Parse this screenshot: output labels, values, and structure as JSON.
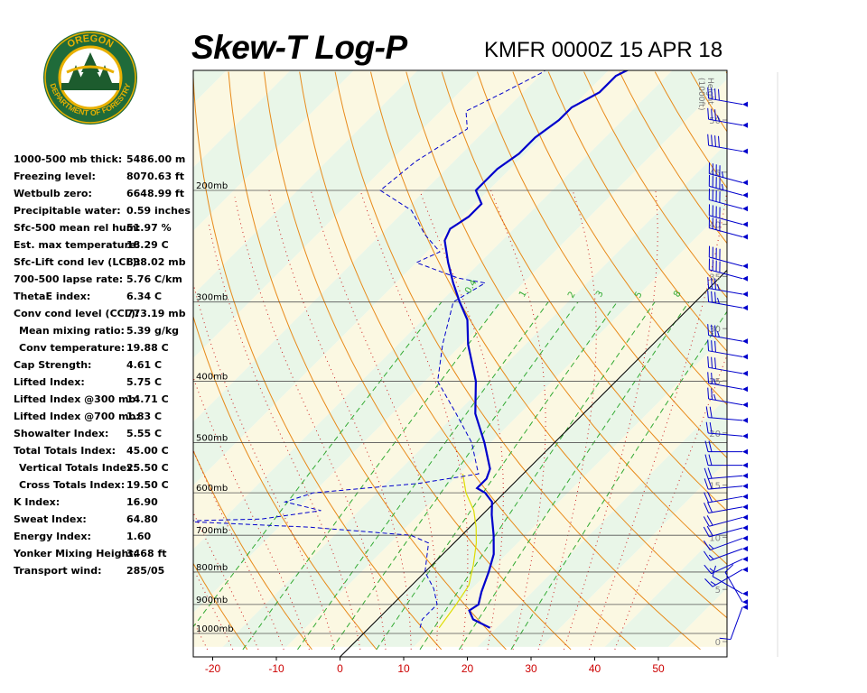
{
  "header": {
    "title": "Skew-T Log-P",
    "station": "KMFR 0000Z 15 APR 18"
  },
  "logo": {
    "top_text": "OREGON",
    "bottom_text": "DEPARTMENT OF FORESTRY",
    "colors": {
      "ring": "#1f6b3a",
      "gold": "#e8b000",
      "tree": "#1d5c2e"
    }
  },
  "stats": [
    {
      "label": "1000-500 mb thick:",
      "value": "5486.00 m",
      "indent": false
    },
    {
      "label": "Freezing level:",
      "value": "8070.63 ft",
      "indent": false
    },
    {
      "label": "Wetbulb zero:",
      "value": "6648.99 ft",
      "indent": false
    },
    {
      "label": "Precipitable water:",
      "value": "0.59 inches",
      "indent": false
    },
    {
      "label": "Sfc-500 mean rel hum:",
      "value": "51.97 %",
      "indent": false
    },
    {
      "label": "Est. max temperature:",
      "value": "18.29 C",
      "indent": false
    },
    {
      "label": "Sfc-Lift cond lev (LCL):",
      "value": "838.02 mb",
      "indent": false
    },
    {
      "label": "700-500 lapse rate:",
      "value": "5.76 C/km",
      "indent": false
    },
    {
      "label": "ThetaE index:",
      "value": "6.34 C",
      "indent": false
    },
    {
      "label": "Conv cond level (CCL):",
      "value": "773.19 mb",
      "indent": false
    },
    {
      "label": "Mean mixing ratio:",
      "value": "5.39 g/kg",
      "indent": true
    },
    {
      "label": "Conv temperature:",
      "value": "19.88 C",
      "indent": true
    },
    {
      "label": "Cap Strength:",
      "value": "4.61 C",
      "indent": false
    },
    {
      "label": "Lifted Index:",
      "value": "5.75 C",
      "indent": false
    },
    {
      "label": "Lifted Index @300 mb:",
      "value": "14.71 C",
      "indent": false
    },
    {
      "label": "Lifted Index @700 mb:",
      "value": "1.83 C",
      "indent": false
    },
    {
      "label": "Showalter Index:",
      "value": "5.55 C",
      "indent": false
    },
    {
      "label": "Total Totals Index:",
      "value": "45.00 C",
      "indent": false
    },
    {
      "label": "Vertical Totals Index:",
      "value": "25.50 C",
      "indent": true
    },
    {
      "label": "Cross Totals Index:",
      "value": "19.50 C",
      "indent": true
    },
    {
      "label": "K Index:",
      "value": "16.90",
      "indent": false
    },
    {
      "label": "Sweat Index:",
      "value": "64.80",
      "indent": false
    },
    {
      "label": "Energy Index:",
      "value": "1.60",
      "indent": false
    },
    {
      "label": "Yonker Mixing Height:",
      "value": "3468 ft",
      "indent": false
    },
    {
      "label": "Transport wind:",
      "value": "285/05",
      "indent": false
    }
  ],
  "chart_data": {
    "type": "line",
    "x_axis": {
      "ticks": [
        -20,
        -10,
        0,
        10,
        20,
        30,
        40,
        50
      ],
      "tick_color": "#cc0000"
    },
    "pressure_levels": [
      {
        "p": 1000,
        "label": "1000mb"
      },
      {
        "p": 900,
        "label": "900mb"
      },
      {
        "p": 800,
        "label": "800mb"
      },
      {
        "p": 700,
        "label": "700mb"
      },
      {
        "p": 600,
        "label": "600mb"
      },
      {
        "p": 500,
        "label": "500mb"
      },
      {
        "p": 400,
        "label": "400mb"
      },
      {
        "p": 300,
        "label": "300mb"
      },
      {
        "p": 200,
        "label": "200mb"
      }
    ],
    "height_axis": {
      "label_line1": "Height",
      "label_line2": "(1000ft)",
      "ticks": [
        0,
        5,
        10,
        15,
        20,
        25,
        30,
        35,
        40,
        45,
        50
      ]
    },
    "mixing_ratio_labels": [
      "0.4",
      "1",
      "2",
      "3",
      "5",
      "8"
    ],
    "temperature_series": {
      "color": "#0000cc",
      "points": [
        {
          "p": 980,
          "t": 19
        },
        {
          "p": 950,
          "t": 15
        },
        {
          "p": 920,
          "t": 13
        },
        {
          "p": 900,
          "t": 13.5
        },
        {
          "p": 860,
          "t": 12
        },
        {
          "p": 800,
          "t": 10
        },
        {
          "p": 750,
          "t": 8
        },
        {
          "p": 700,
          "t": 5
        },
        {
          "p": 650,
          "t": 1.5
        },
        {
          "p": 620,
          "t": -0.5
        },
        {
          "p": 600,
          "t": -3
        },
        {
          "p": 590,
          "t": -5
        },
        {
          "p": 570,
          "t": -5
        },
        {
          "p": 550,
          "t": -6
        },
        {
          "p": 500,
          "t": -11
        },
        {
          "p": 450,
          "t": -17
        },
        {
          "p": 400,
          "t": -22
        },
        {
          "p": 350,
          "t": -29
        },
        {
          "p": 320,
          "t": -33
        },
        {
          "p": 300,
          "t": -37
        },
        {
          "p": 280,
          "t": -41
        },
        {
          "p": 260,
          "t": -45
        },
        {
          "p": 240,
          "t": -49
        },
        {
          "p": 230,
          "t": -50
        },
        {
          "p": 220,
          "t": -49
        },
        {
          "p": 210,
          "t": -49
        },
        {
          "p": 200,
          "t": -52
        },
        {
          "p": 185,
          "t": -52
        },
        {
          "p": 175,
          "t": -51
        },
        {
          "p": 165,
          "t": -51
        },
        {
          "p": 155,
          "t": -50
        },
        {
          "p": 148,
          "t": -50
        },
        {
          "p": 140,
          "t": -48
        },
        {
          "p": 132,
          "t": -48
        },
        {
          "p": 126,
          "t": -46
        },
        {
          "p": 120,
          "t": -44
        }
      ]
    },
    "dewpoint_series": {
      "color": "#0000cc",
      "points": [
        {
          "p": 980,
          "t": 8
        },
        {
          "p": 950,
          "t": 7
        },
        {
          "p": 900,
          "t": 7
        },
        {
          "p": 850,
          "t": 4
        },
        {
          "p": 800,
          "t": 0
        },
        {
          "p": 720,
          "t": -4
        },
        {
          "p": 700,
          "t": -8
        },
        {
          "p": 680,
          "t": -25
        },
        {
          "p": 665,
          "t": -47
        },
        {
          "p": 660,
          "t": -34
        },
        {
          "p": 640,
          "t": -26
        },
        {
          "p": 620,
          "t": -33
        },
        {
          "p": 600,
          "t": -30
        },
        {
          "p": 580,
          "t": -15
        },
        {
          "p": 560,
          "t": -7
        },
        {
          "p": 550,
          "t": -8
        },
        {
          "p": 500,
          "t": -13
        },
        {
          "p": 450,
          "t": -20
        },
        {
          "p": 400,
          "t": -28
        },
        {
          "p": 350,
          "t": -33
        },
        {
          "p": 300,
          "t": -38
        },
        {
          "p": 280,
          "t": -36
        },
        {
          "p": 275,
          "t": -41
        },
        {
          "p": 260,
          "t": -50
        },
        {
          "p": 250,
          "t": -48
        },
        {
          "p": 235,
          "t": -53
        },
        {
          "p": 215,
          "t": -59
        },
        {
          "p": 200,
          "t": -67
        },
        {
          "p": 180,
          "t": -66
        },
        {
          "p": 160,
          "t": -63
        },
        {
          "p": 150,
          "t": -66
        },
        {
          "p": 140,
          "t": -63
        },
        {
          "p": 130,
          "t": -60
        },
        {
          "p": 125,
          "t": -60
        }
      ]
    },
    "parcel_series": {
      "color": "#dddd00",
      "points": [
        {
          "p": 980,
          "t": 11
        },
        {
          "p": 900,
          "t": 10
        },
        {
          "p": 840,
          "t": 9
        },
        {
          "p": 780,
          "t": 6.5
        },
        {
          "p": 720,
          "t": 3.5
        },
        {
          "p": 680,
          "t": 1
        },
        {
          "p": 640,
          "t": -2
        },
        {
          "p": 600,
          "t": -6
        },
        {
          "p": 560,
          "t": -9.5
        }
      ]
    },
    "wind_barbs": {
      "color": "#0000cc",
      "rows": [
        {
          "h": 51.5,
          "dir": 280,
          "spd": 40
        },
        {
          "h": 49.5,
          "dir": 280,
          "spd": 35
        },
        {
          "h": 47.0,
          "dir": 280,
          "spd": 40
        },
        {
          "h": 44.0,
          "dir": 285,
          "spd": 45
        },
        {
          "h": 42.8,
          "dir": 285,
          "spd": 45
        },
        {
          "h": 41.5,
          "dir": 285,
          "spd": 40
        },
        {
          "h": 40.0,
          "dir": 285,
          "spd": 40
        },
        {
          "h": 38.8,
          "dir": 285,
          "spd": 40
        },
        {
          "h": 36.0,
          "dir": 285,
          "spd": 40
        },
        {
          "h": 34.8,
          "dir": 285,
          "spd": 40
        },
        {
          "h": 33.3,
          "dir": 280,
          "spd": 35
        },
        {
          "h": 32.0,
          "dir": 280,
          "spd": 35
        },
        {
          "h": 28.8,
          "dir": 280,
          "spd": 35
        },
        {
          "h": 27.3,
          "dir": 280,
          "spd": 30
        },
        {
          "h": 25.7,
          "dir": 280,
          "spd": 30
        },
        {
          "h": 24.2,
          "dir": 280,
          "spd": 25
        },
        {
          "h": 22.7,
          "dir": 280,
          "spd": 25
        },
        {
          "h": 21.2,
          "dir": 275,
          "spd": 20
        },
        {
          "h": 19.7,
          "dir": 275,
          "spd": 20
        },
        {
          "h": 18.2,
          "dir": 270,
          "spd": 20
        },
        {
          "h": 16.9,
          "dir": 270,
          "spd": 20
        },
        {
          "h": 15.9,
          "dir": 265,
          "spd": 20
        },
        {
          "h": 14.9,
          "dir": 265,
          "spd": 20
        },
        {
          "h": 13.9,
          "dir": 260,
          "spd": 20
        },
        {
          "h": 12.9,
          "dir": 260,
          "spd": 20
        },
        {
          "h": 11.9,
          "dir": 255,
          "spd": 20
        },
        {
          "h": 10.9,
          "dir": 255,
          "spd": 20
        },
        {
          "h": 9.9,
          "dir": 250,
          "spd": 15
        },
        {
          "h": 8.9,
          "dir": 250,
          "spd": 15
        },
        {
          "h": 7.9,
          "dir": 245,
          "spd": 15
        },
        {
          "h": 6.9,
          "dir": 240,
          "spd": 15
        },
        {
          "h": 4.6,
          "dir": 300,
          "spd": 10
        },
        {
          "h": 3.8,
          "dir": 330,
          "spd": 10
        },
        {
          "h": 3.3,
          "dir": 200,
          "spd": 10
        }
      ]
    }
  }
}
